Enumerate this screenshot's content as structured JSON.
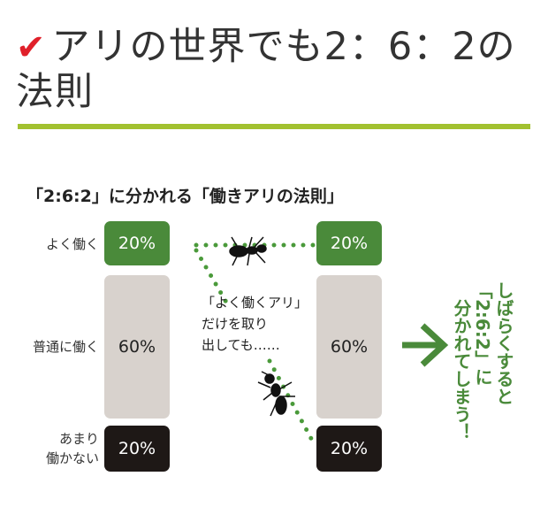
{
  "heading": {
    "check_icon": "red-checkmark-icon",
    "title": "アリの世界でも2：6：2の法則",
    "accent_color": "#a2c130"
  },
  "diagram": {
    "title": "「2:6:2」に分かれる「働きアリの法則」",
    "row_labels": {
      "top": "よく働く",
      "middle": "普通に働く",
      "bottom_line1": "あまり",
      "bottom_line2": "働かない"
    },
    "left": {
      "top": "20%",
      "middle": "60%",
      "bottom": "20%"
    },
    "right": {
      "top": "20%",
      "middle": "60%",
      "bottom": "20%"
    },
    "middle_text": {
      "line1": "「よく働くアリ」",
      "line2": "だけを取り",
      "line3": "出しても……"
    },
    "conclusion": {
      "col1": "しばらくすると",
      "col2": "「2:6:2」に",
      "col3": "分かれてしまう！"
    },
    "colors": {
      "green": "#4a8a3a",
      "gray": "#d8d2cd",
      "black": "#1e1816"
    }
  }
}
